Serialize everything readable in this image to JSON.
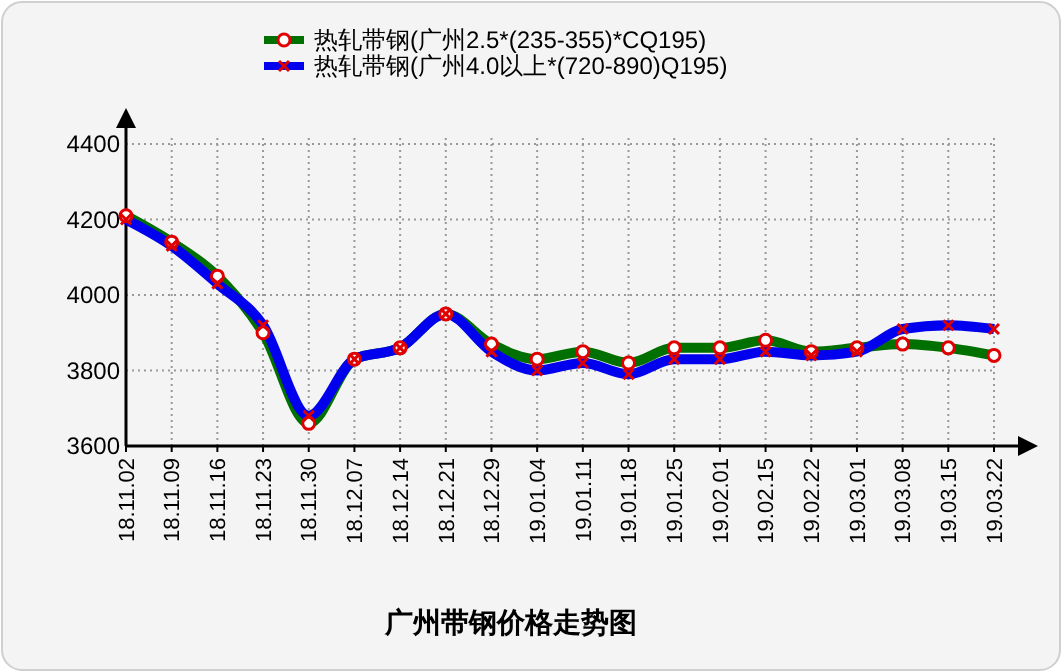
{
  "chart_data": {
    "type": "line",
    "title": "广州带钢价格走势图",
    "categories": [
      "18.11.02",
      "18.11.09",
      "18.11.16",
      "18.11.23",
      "18.11.30",
      "18.12.07",
      "18.12.14",
      "18.12.21",
      "18.12.29",
      "19.01.04",
      "19.01.11",
      "19.01.18",
      "19.01.25",
      "19.02.01",
      "19.02.15",
      "19.02.22",
      "19.03.01",
      "19.03.08",
      "19.03.15",
      "19.03.22"
    ],
    "series": [
      {
        "name": "热轧带钢(广州2.5*(235-355)*CQ195)",
        "color": "#007000",
        "marker": "circle",
        "values": [
          4210,
          4140,
          4050,
          3900,
          3660,
          3830,
          3860,
          3950,
          3870,
          3830,
          3850,
          3820,
          3860,
          3860,
          3880,
          3850,
          3860,
          3870,
          3860,
          3840
        ]
      },
      {
        "name": "热轧带钢(广州4.0以上*(720-890)Q195)",
        "color": "#0000ee",
        "marker": "cross",
        "values": [
          4200,
          4130,
          4030,
          3920,
          3680,
          3830,
          3860,
          3950,
          3850,
          3800,
          3820,
          3790,
          3830,
          3830,
          3850,
          3840,
          3850,
          3910,
          3920,
          3910
        ]
      }
    ],
    "ylim": [
      3600,
      4400
    ],
    "yticks": [
      3600,
      3800,
      4000,
      4200,
      4400
    ],
    "grid": true,
    "legend": "top"
  }
}
